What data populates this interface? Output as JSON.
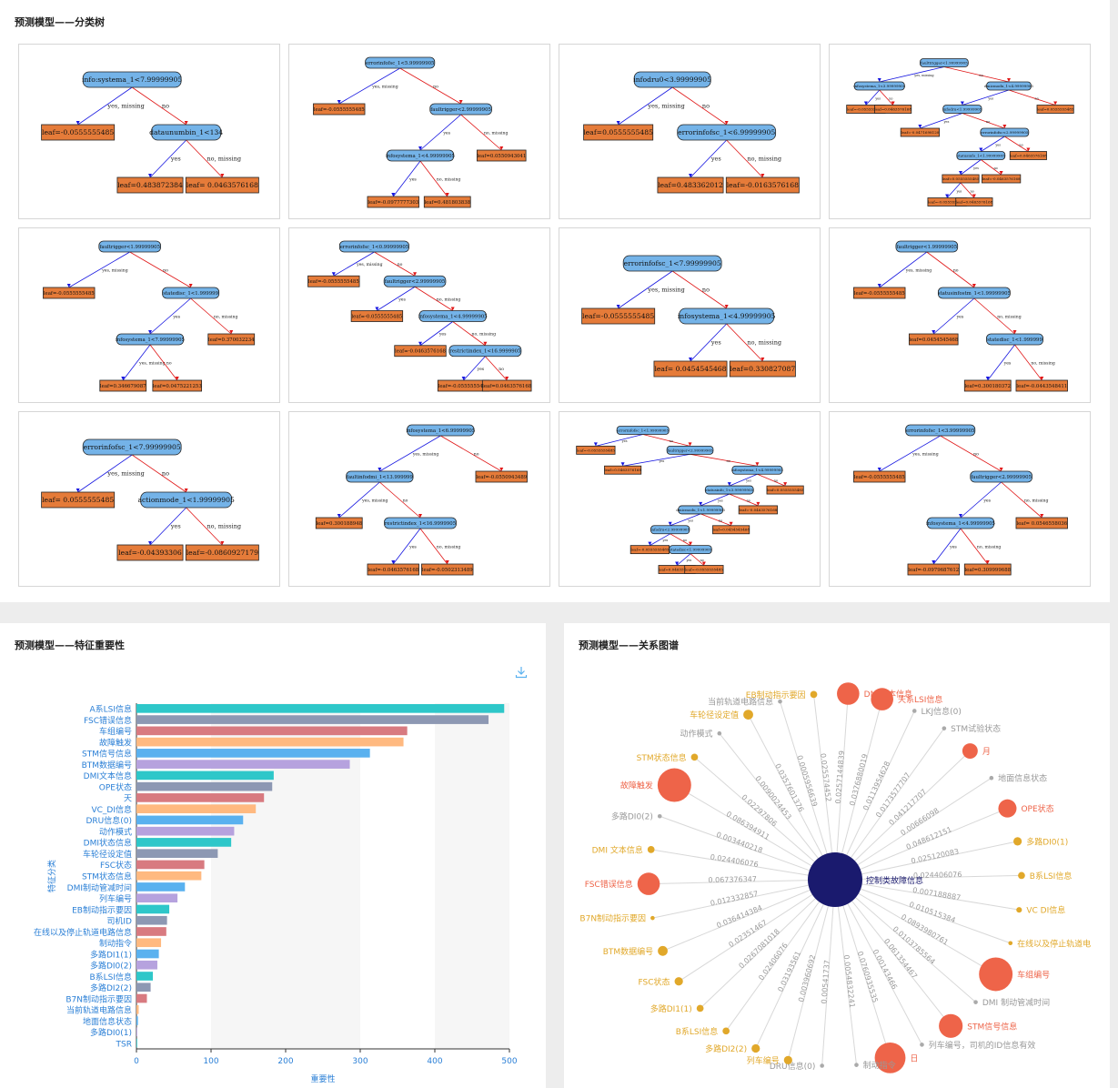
{
  "sections": {
    "tree_title": "预测模型——分类树",
    "importance_title": "预测模型——特征重要性",
    "relation_title": "预测模型——关系图谱"
  },
  "trees": [
    {
      "nodes": [
        {
          "id": "n1",
          "t": "info:systema_1<7.99999905",
          "k": "s",
          "p": null
        },
        {
          "id": "n2",
          "t": "leaf=-0.0555555485",
          "k": "l",
          "p": "n1",
          "e": "yes, missing"
        },
        {
          "id": "n3",
          "t": "dataunumbin_1<134",
          "k": "s",
          "p": "n1",
          "e": "no"
        },
        {
          "id": "n4",
          "t": "leaf=0.483872384",
          "k": "l",
          "p": "n3",
          "e": "yes"
        },
        {
          "id": "n5",
          "t": "leaf= 0.0463576168",
          "k": "l",
          "p": "n3",
          "e": "no, missing"
        }
      ]
    },
    {
      "nodes": [
        {
          "id": "n1",
          "t": "errorinfofsc_1<5.99999905",
          "k": "s",
          "p": null
        },
        {
          "id": "n2",
          "t": "leaf=-0.0555555485",
          "k": "l",
          "p": "n1",
          "e": "yes, missing"
        },
        {
          "id": "n3",
          "t": "faultrigger<2.99999905",
          "k": "s",
          "p": "n1",
          "e": "no"
        },
        {
          "id": "n4",
          "t": "infosystema_1<4.99999905",
          "k": "s",
          "p": "n3",
          "e": "yes"
        },
        {
          "id": "n5",
          "t": "leaf=0.0550943041",
          "k": "l",
          "p": "n3",
          "e": "no, missing"
        },
        {
          "id": "n6",
          "t": "leaf=-0.0977777303",
          "k": "l",
          "p": "n4",
          "e": "yes"
        },
        {
          "id": "n7",
          "t": "leaf=0.481803838",
          "k": "l",
          "p": "n4",
          "e": "no, missing"
        }
      ]
    },
    {
      "nodes": [
        {
          "id": "n1",
          "t": "infodru0<3.99999905",
          "k": "s",
          "p": null
        },
        {
          "id": "n2",
          "t": "leaf=0.0555555485",
          "k": "l",
          "p": "n1",
          "e": "yes, missing"
        },
        {
          "id": "n3",
          "t": "errorinfofsc_1<6.99999905",
          "k": "s",
          "p": "n1",
          "e": "no"
        },
        {
          "id": "n4",
          "t": "leaf=0.483362012",
          "k": "l",
          "p": "n3",
          "e": "yes"
        },
        {
          "id": "n5",
          "t": "leaf=-0.0163576168",
          "k": "l",
          "p": "n3",
          "e": "no, missing"
        }
      ]
    },
    {
      "nodes": [
        {
          "id": "n1",
          "t": "faulttrigger<1.99999905",
          "k": "s",
          "p": null
        },
        {
          "id": "n2",
          "t": "infosystema_1<3.99999905",
          "k": "s",
          "p": "n1",
          "e": "yes, missing"
        },
        {
          "id": "n3",
          "t": "dmicmodu_1<4.99999905",
          "k": "s",
          "p": "n1",
          "e": "no"
        },
        {
          "id": "n4",
          "t": "leaf=-0.0555555485",
          "k": "l",
          "p": "n2",
          "e": "yes"
        },
        {
          "id": "n5",
          "t": "leaf=0.0463576168",
          "k": "l",
          "p": "n2",
          "e": "no"
        },
        {
          "id": "n6",
          "t": "infodru<1.99999905",
          "k": "s",
          "p": "n3",
          "e": "yes"
        },
        {
          "id": "n7",
          "t": "leaf=0.0555555485",
          "k": "l",
          "p": "n3",
          "e": "no"
        },
        {
          "id": "n8",
          "t": "leaf=-0.0471698120",
          "k": "l",
          "p": "n6",
          "e": "yes"
        },
        {
          "id": "n9",
          "t": "errorinfofsc<2.99999905",
          "k": "s",
          "p": "n6",
          "e": "no"
        },
        {
          "id": "n10",
          "t": "statusinfo_1<1.99999905",
          "k": "s",
          "p": "n9",
          "e": "yes"
        },
        {
          "id": "n11",
          "t": "leaf=0.0463576168",
          "k": "l",
          "p": "n9",
          "e": "no"
        },
        {
          "id": "n12",
          "t": "leaf=0.0555555485",
          "k": "l",
          "p": "n10",
          "e": "yes"
        },
        {
          "id": "n13",
          "t": "leaf=-0.0463576168",
          "k": "l",
          "p": "n10",
          "e": "no"
        },
        {
          "id": "n14",
          "t": "leaf=-0.0555555485",
          "k": "l",
          "p": "n12",
          "e": "yes"
        },
        {
          "id": "n15",
          "t": "leaf=0.0463576168",
          "k": "l",
          "p": "n12",
          "e": "no"
        }
      ]
    },
    {
      "nodes": [
        {
          "id": "n1",
          "t": "faultrigger<1.99999905",
          "k": "s",
          "p": null
        },
        {
          "id": "n2",
          "t": "leaf=-0.0555555485",
          "k": "l",
          "p": "n1",
          "e": "yes, missing"
        },
        {
          "id": "n3",
          "t": "statedisc_1<1.999999",
          "k": "s",
          "p": "n1",
          "e": "no"
        },
        {
          "id": "n4",
          "t": "infosystema_1<7.99999905",
          "k": "s",
          "p": "n3",
          "e": "yes"
        },
        {
          "id": "n5",
          "t": "leaf=0.370032234",
          "k": "l",
          "p": "n3",
          "e": "no, missing"
        },
        {
          "id": "n6",
          "t": "leaf=0.346679087",
          "k": "l",
          "p": "n4",
          "e": "yes, missing"
        },
        {
          "id": "n7",
          "t": "leaf=0.0475221253",
          "k": "l",
          "p": "n4",
          "e": "no"
        }
      ]
    },
    {
      "nodes": [
        {
          "id": "n1",
          "t": "errorinfofsc_1<0.99999905",
          "k": "s",
          "p": null
        },
        {
          "id": "n2",
          "t": "leaf=-0.0555555485",
          "k": "l",
          "p": "n1",
          "e": "yes, missing"
        },
        {
          "id": "n3",
          "t": "faultrigger<2.99999905",
          "k": "s",
          "p": "n1",
          "e": "no"
        },
        {
          "id": "n4",
          "t": "leaf=-0.0555555485",
          "k": "l",
          "p": "n3",
          "e": "yes"
        },
        {
          "id": "n5",
          "t": "infosystema_1<4.99999905",
          "k": "s",
          "p": "n3",
          "e": "no, missing"
        },
        {
          "id": "n6",
          "t": "leaf=-0.0463576168",
          "k": "l",
          "p": "n5",
          "e": "yes"
        },
        {
          "id": "n7",
          "t": "restrictindex_1<16.9999905",
          "k": "s",
          "p": "n5",
          "e": "no, missing"
        },
        {
          "id": "n8",
          "t": "leaf=-0.0555555485",
          "k": "l",
          "p": "n7",
          "e": "yes"
        },
        {
          "id": "n9",
          "t": "leaf=0.0463576168",
          "k": "l",
          "p": "n7",
          "e": "no"
        }
      ]
    },
    {
      "nodes": [
        {
          "id": "n1",
          "t": "errorinfofsc_1<7.99999905",
          "k": "s",
          "p": null
        },
        {
          "id": "n2",
          "t": "leaf=-0.0555555485",
          "k": "l",
          "p": "n1",
          "e": "yes, missing"
        },
        {
          "id": "n3",
          "t": "infosystema_1<4.99999905",
          "k": "s",
          "p": "n1",
          "e": "no"
        },
        {
          "id": "n4",
          "t": "leaf= 0.0454545468",
          "k": "l",
          "p": "n3",
          "e": "yes"
        },
        {
          "id": "n5",
          "t": "leaf=0.330827087",
          "k": "l",
          "p": "n3",
          "e": "no, missing"
        }
      ]
    },
    {
      "nodes": [
        {
          "id": "n1",
          "t": "faultrigger<1.99999905",
          "k": "s",
          "p": null
        },
        {
          "id": "n2",
          "t": "leaf=-0.0555555485",
          "k": "l",
          "p": "n1",
          "e": "yes, missing"
        },
        {
          "id": "n3",
          "t": "statusinfostm_1<1.99999905",
          "k": "s",
          "p": "n1",
          "e": "no"
        },
        {
          "id": "n4",
          "t": "leaf=0.0454545468",
          "k": "l",
          "p": "n3",
          "e": "yes"
        },
        {
          "id": "n5",
          "t": "statedisc_1<1.999999",
          "k": "s",
          "p": "n3",
          "e": "no, missing"
        },
        {
          "id": "n6",
          "t": "leaf=0.300180372",
          "k": "l",
          "p": "n5",
          "e": "yes"
        },
        {
          "id": "n7",
          "t": "leaf=-0.0443548411",
          "k": "l",
          "p": "n5",
          "e": "no, missing"
        }
      ]
    },
    {
      "nodes": [
        {
          "id": "n1",
          "t": "errorinfofsc_1<7.99999905",
          "k": "s",
          "p": null
        },
        {
          "id": "n2",
          "t": "leaf= 0.0555555485",
          "k": "l",
          "p": "n1",
          "e": "yes, missing"
        },
        {
          "id": "n3",
          "t": "actionmode_1<1.99999905",
          "k": "s",
          "p": "n1",
          "e": "no"
        },
        {
          "id": "n4",
          "t": "leaf=-0.04393306",
          "k": "l",
          "p": "n3",
          "e": "yes"
        },
        {
          "id": "n5",
          "t": "leaf=-0.0860927179",
          "k": "l",
          "p": "n3",
          "e": "no, missing"
        }
      ]
    },
    {
      "nodes": [
        {
          "id": "n1",
          "t": "infosystema_1<6.99999905",
          "k": "s",
          "p": null
        },
        {
          "id": "n2",
          "t": "faultinfodmi_1<13.999999",
          "k": "s",
          "p": "n1",
          "e": "yes, missing"
        },
        {
          "id": "n3",
          "t": "leaf=-0.0550943489",
          "k": "l",
          "p": "n1",
          "e": "no"
        },
        {
          "id": "n4",
          "t": "leaf=0.300188948",
          "k": "l",
          "p": "n2",
          "e": "yes, missing"
        },
        {
          "id": "n5",
          "t": "restrictindex_1<16.9999905",
          "k": "s",
          "p": "n2",
          "e": "no"
        },
        {
          "id": "n6",
          "t": "leaf=-0.0463576168",
          "k": "l",
          "p": "n5",
          "e": "yes"
        },
        {
          "id": "n7",
          "t": "leaf=-0.0502313489",
          "k": "l",
          "p": "n5",
          "e": "no, missing"
        }
      ]
    },
    {
      "nodes": [
        {
          "id": "n1",
          "t": "errorinfofsc_1<1.99999905",
          "k": "s",
          "p": null
        },
        {
          "id": "n2",
          "t": "leaf=-0.0555555485",
          "k": "l",
          "p": "n1",
          "e": "yes"
        },
        {
          "id": "n3",
          "t": "faultrigger<2.99999905",
          "k": "s",
          "p": "n1",
          "e": "no"
        },
        {
          "id": "n4",
          "t": "leaf=0.0463576168",
          "k": "l",
          "p": "n3",
          "e": "yes"
        },
        {
          "id": "n5",
          "t": "infosystema_1<4.99999905",
          "k": "s",
          "p": "n3",
          "e": "no"
        },
        {
          "id": "n6",
          "t": "statusinfo_1<3.99999905",
          "k": "s",
          "p": "n5",
          "e": "yes"
        },
        {
          "id": "n7",
          "t": "leaf=0.0555555485",
          "k": "l",
          "p": "n5",
          "e": "no"
        },
        {
          "id": "n8",
          "t": "dmicmodu_1<1.99999905",
          "k": "s",
          "p": "n6",
          "e": "yes"
        },
        {
          "id": "n9",
          "t": "leaf=-0.0463576168",
          "k": "l",
          "p": "n6",
          "e": "no"
        },
        {
          "id": "n10",
          "t": "infodru<2.99999905",
          "k": "s",
          "p": "n8",
          "e": "yes"
        },
        {
          "id": "n11",
          "t": "leaf=0.0454545468",
          "k": "l",
          "p": "n8",
          "e": "no"
        },
        {
          "id": "n12",
          "t": "leaf=-0.0555555485",
          "k": "l",
          "p": "n10",
          "e": "yes"
        },
        {
          "id": "n13",
          "t": "statedisc<1.99999905",
          "k": "s",
          "p": "n10",
          "e": "no"
        },
        {
          "id": "n14",
          "t": "leaf=0.0463576168",
          "k": "l",
          "p": "n13",
          "e": "yes"
        },
        {
          "id": "n15",
          "t": "leaf=-0.0555555485",
          "k": "l",
          "p": "n13",
          "e": "no"
        }
      ]
    },
    {
      "nodes": [
        {
          "id": "n1",
          "t": "errorinfofsc_1<3.99999905",
          "k": "s",
          "p": null
        },
        {
          "id": "n2",
          "t": "leaf=-0.0555555485",
          "k": "l",
          "p": "n1",
          "e": "yes, missing"
        },
        {
          "id": "n3",
          "t": "faultrigger<2.99999905",
          "k": "s",
          "p": "n1",
          "e": "no"
        },
        {
          "id": "n4",
          "t": "infosystema_1<4.99999905",
          "k": "s",
          "p": "n3",
          "e": "yes"
        },
        {
          "id": "n5",
          "t": "leaf= 0.0546558036",
          "k": "l",
          "p": "n3",
          "e": "no, missing"
        },
        {
          "id": "n6",
          "t": "leaf=-0.0979687612",
          "k": "l",
          "p": "n4",
          "e": "yes"
        },
        {
          "id": "n7",
          "t": "leaf=0.309999688",
          "k": "l",
          "p": "n4",
          "e": "no, missing"
        }
      ]
    }
  ],
  "chart_data": {
    "type": "bar",
    "orientation": "horizontal",
    "xlabel": "重要性",
    "ylabel": "特征分类",
    "xlim": [
      0,
      500
    ],
    "xticks": [
      0,
      100,
      200,
      300,
      400,
      500
    ],
    "grid": false,
    "categories": [
      "A系LSI信息",
      "FSC错误信息",
      "车组编号",
      "故障触发",
      "STM信号信息",
      "BTM数据编号",
      "DMI文本信息",
      "OPE状态",
      "天",
      "VC_DI信息",
      "DRU信息(0)",
      "动作模式",
      "DMI状态信息",
      "车轮径设定值",
      "FSC状态",
      "STM状态信息",
      "DMI制动管减时间",
      "列车编号",
      "EB制动指示要因",
      "司机ID",
      "在线以及停止轨道电路信息",
      "制动指令",
      "多路DI1(1)",
      "多路DI0(2)",
      "B系LSI信息",
      "多路DI2(2)",
      "B7N制动指示要因",
      "当前轨道电路信息",
      "地面信息状态",
      "多路DI0(1)",
      "TSR"
    ],
    "values": [
      493,
      472,
      363,
      358,
      313,
      286,
      184,
      182,
      171,
      160,
      143,
      131,
      127,
      109,
      91,
      87,
      65,
      55,
      44,
      41,
      40,
      33,
      30,
      28,
      22,
      19,
      14,
      3,
      2,
      1,
      0.5
    ],
    "bar_colors": [
      "#2ec7c9",
      "#8d98b3",
      "#d87a80",
      "#ffb980",
      "#5ab1ef",
      "#b6a2de"
    ]
  },
  "graph": {
    "center": {
      "label": "控制类故障信息",
      "color": "#1a1a6e"
    },
    "nodes": [
      {
        "label": "DMI文本信息",
        "c": "r",
        "w": "0.0257144839",
        "s": 16
      },
      {
        "label": "天系LSI信息",
        "c": "r",
        "w": "0.0376880019",
        "s": 16
      },
      {
        "label": "LKJ信息(0)",
        "c": "g",
        "w": "0.0113954628",
        "s": 3
      },
      {
        "label": "STM试验状态",
        "c": "g",
        "w": "0.0173577707",
        "s": 3
      },
      {
        "label": "月",
        "c": "r",
        "w": "0.041217707",
        "s": 11
      },
      {
        "label": "地面信息状态",
        "c": "g",
        "w": "0.00666098",
        "s": 3
      },
      {
        "label": "OPE状态",
        "c": "r",
        "w": "0.048612151",
        "s": 13
      },
      {
        "label": "多路DI0(1)",
        "c": "y",
        "w": "0.025120083",
        "s": 6
      },
      {
        "label": "B系LSI信息",
        "c": "y",
        "w": "0.024406076",
        "s": 5
      },
      {
        "label": "VC DI信息",
        "c": "y",
        "w": "0.007188887",
        "s": 4
      },
      {
        "label": "在线以及停止轨道电",
        "c": "y",
        "w": "0.010515384",
        "s": 3
      },
      {
        "label": "车组编号",
        "c": "r",
        "w": "0.0893980761",
        "s": 24
      },
      {
        "label": "DMI 制动管减时间",
        "c": "g",
        "w": "0.0103785564",
        "s": 3
      },
      {
        "label": "STM信号信息",
        "c": "r",
        "w": "0.061354467",
        "s": 17
      },
      {
        "label": "列车编号，司机的ID信息有效",
        "c": "g",
        "w": "0.00143466",
        "s": 3
      },
      {
        "label": "日",
        "c": "r",
        "w": "0.0760935535",
        "s": 22
      },
      {
        "label": "制动指令",
        "c": "g",
        "w": "0.0054832241",
        "s": 3
      },
      {
        "label": "DRU信息(0)",
        "c": "g",
        "w": "0.00541737",
        "s": 3
      },
      {
        "label": "列车编号",
        "c": "y",
        "w": "0.003960692",
        "s": 6
      },
      {
        "label": "多路DI2(2)",
        "c": "y",
        "w": "0.03193561",
        "s": 6
      },
      {
        "label": "B系LSI信息",
        "c": "y",
        "w": "0.02406076",
        "s": 5
      },
      {
        "label": "多路DI1(1)",
        "c": "y",
        "w": "0.0267081018",
        "s": 5
      },
      {
        "label": "FSC状态",
        "c": "y",
        "w": "0.02351467",
        "s": 6
      },
      {
        "label": "BTM数据编号",
        "c": "y",
        "w": "0.036414384",
        "s": 7
      },
      {
        "label": "B7N制动指示要因",
        "c": "y",
        "w": "0.012332857",
        "s": 3
      },
      {
        "label": "FSC错误信息",
        "c": "r",
        "w": "0.067376347",
        "s": 16
      },
      {
        "label": "DMI 文本信息",
        "c": "y",
        "w": "0.024406076",
        "s": 5
      },
      {
        "label": "多路DI0(2)",
        "c": "g",
        "w": "0.003440218",
        "s": 3
      },
      {
        "label": "故障触发",
        "c": "r",
        "w": "0.086394911",
        "s": 24
      },
      {
        "label": "STM状态信息",
        "c": "y",
        "w": "0.02297806",
        "s": 5
      },
      {
        "label": "动作模式",
        "c": "g",
        "w": "0.0090024453",
        "s": 3
      },
      {
        "label": "车轮径设定值",
        "c": "y",
        "w": "0.0357601376",
        "s": 7
      },
      {
        "label": "当前轨道电路信息",
        "c": "g",
        "w": "0.0005956639",
        "s": 3
      },
      {
        "label": "EB制动指示要因",
        "c": "y",
        "w": "0.025574452",
        "s": 5
      }
    ]
  }
}
